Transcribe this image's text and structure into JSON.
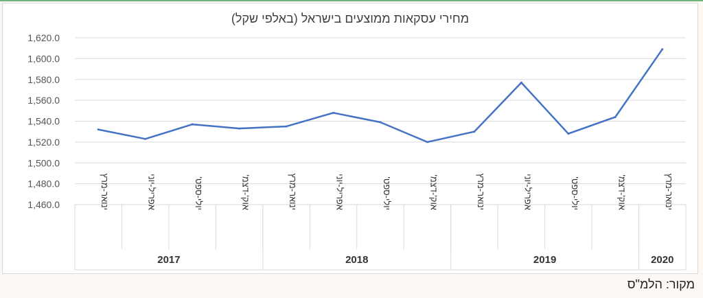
{
  "chart_data": {
    "type": "line",
    "title": "מחירי עסקאות ממוצעים בישראל (באלפי שקל)",
    "ylim": [
      1460,
      1620
    ],
    "yticks": [
      1460,
      1480,
      1500,
      1520,
      1540,
      1560,
      1580,
      1600,
      1620
    ],
    "ytick_labels": [
      "1,460.0",
      "1,480.0",
      "1,500.0",
      "1,520.0",
      "1,540.0",
      "1,560.0",
      "1,580.0",
      "1,600.0",
      "1,620.0"
    ],
    "categories": [
      "ינואר-מרץ",
      "אפריל-יוני",
      "יולי-ספט'",
      "אוק'-דצמ'",
      "ינואר-מרץ",
      "אפריל-יוני",
      "יולי-ספט'",
      "אוק'-דצמ'",
      "ינואר-מרץ",
      "אפריל-יוני",
      "יולי-ספט'",
      "אוק'-דצמ'",
      "ינואר-מרץ"
    ],
    "groups": [
      {
        "label": "2017",
        "count": 4
      },
      {
        "label": "2018",
        "count": 4
      },
      {
        "label": "2019",
        "count": 4
      },
      {
        "label": "2020",
        "count": 1
      }
    ],
    "series": [
      {
        "values": [
          1532,
          1523,
          1537,
          1533,
          1535,
          1548,
          1539,
          1520,
          1530,
          1577,
          1528,
          1544,
          1609
        ]
      }
    ],
    "grid": true,
    "legend": "none",
    "line_color": "#4472c4"
  },
  "source_note": "מקור: הלמ\"ס"
}
